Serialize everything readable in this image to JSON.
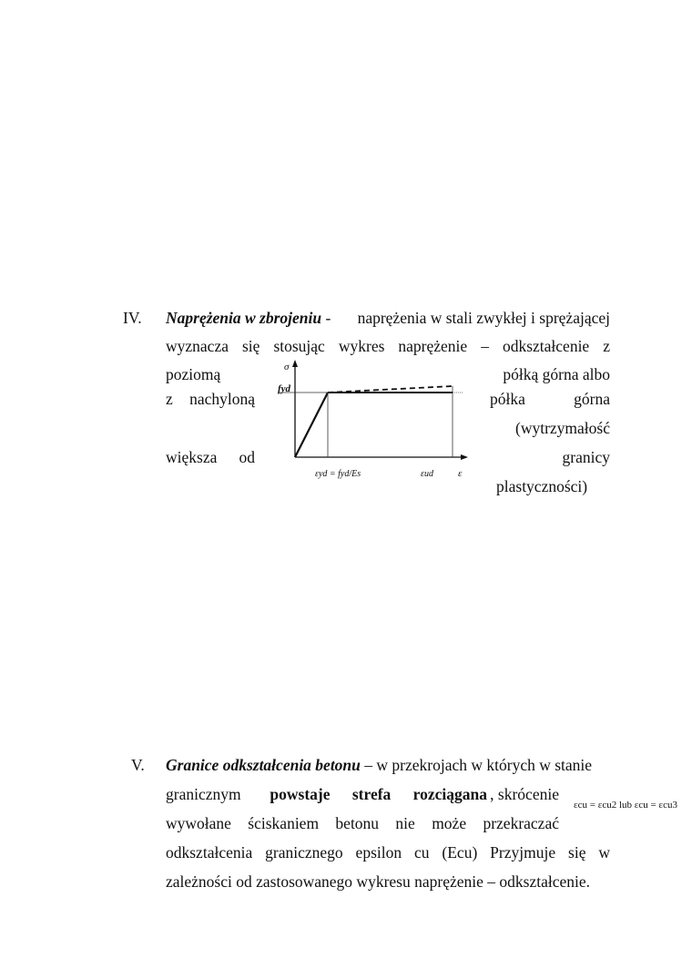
{
  "section4": {
    "numeral": "IV.",
    "title": "Naprężenia w zbrojeniu",
    "sep": " -  ",
    "line1_rest": "naprężenia w stali zwykłej i sprężającej",
    "line2": "wyznacza się stosując wykres naprężenie – odkształcenie z",
    "left_lines": [
      "poziomą",
      "z nachyloną",
      "",
      "większa od"
    ],
    "right_lines": [
      "półką górna albo",
      "półka górna",
      "(wytrzymałość",
      "granicy",
      "plastyczności)"
    ],
    "diagram": {
      "y_label": "σ",
      "fyd_label": "fyd",
      "x_label": "ε",
      "eyd_label": "εyd = fyd/Es",
      "eud_label": "εud"
    }
  },
  "section5": {
    "numeral": "V.",
    "title": "Granice odkształcenia betonu",
    "line1_rest": " – w przekrojach w których w stanie",
    "line2_a": "granicznym",
    "line2_bold": "powstaje strefa rozciągana",
    "line2_b": ", skrócenie",
    "line3": "wywołane ściskaniem betonu nie może przekraczać",
    "line4": "odkształcenia granicznego epsilon cu (Ecu) Przyjmuje się w",
    "line5": "zależności od zastosowanego wykresu naprężenie – odkształcenie.",
    "formula": "εcu = εcu2 lub εcu = εcu3"
  }
}
